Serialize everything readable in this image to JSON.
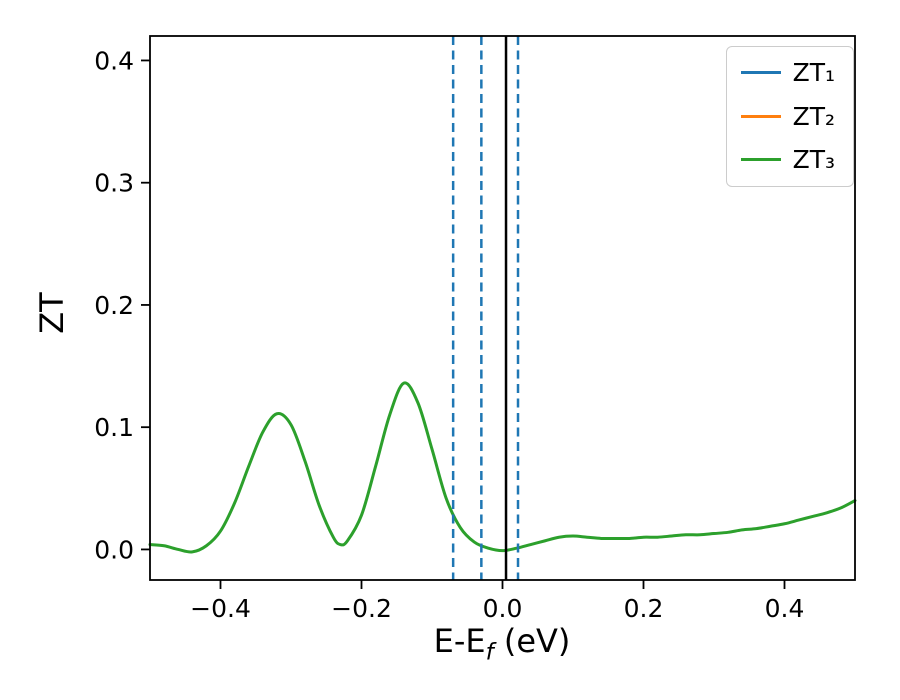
{
  "colors": {
    "background": "#ffffff",
    "axis": "#000000",
    "legend_border": "#cccccc"
  },
  "chart_data": {
    "type": "line",
    "title": "",
    "xlabel": {
      "pre": "E-E",
      "sub": "f",
      "post": " (eV)"
    },
    "ylabel": "ZT",
    "xlim": [
      -0.5,
      0.5
    ],
    "ylim": [
      -0.025,
      0.42
    ],
    "xticks": [
      -0.4,
      -0.2,
      0.0,
      0.2,
      0.4
    ],
    "xtick_labels": [
      "−0.4",
      "−0.2",
      "0.0",
      "0.2",
      "0.4"
    ],
    "yticks": [
      0.0,
      0.1,
      0.2,
      0.3,
      0.4
    ],
    "ytick_labels": [
      "0.0",
      "0.1",
      "0.2",
      "0.3",
      "0.4"
    ],
    "grid": false,
    "legend": {
      "position": "upper right",
      "entries": [
        {
          "label": "ZT₁",
          "color": "#1f77b4"
        },
        {
          "label": "ZT₂",
          "color": "#ff7f0e"
        },
        {
          "label": "ZT₃",
          "color": "#2ca02c"
        }
      ]
    },
    "vlines": [
      {
        "x": -0.07,
        "color": "#1f77b4",
        "style": "dashed"
      },
      {
        "x": -0.03,
        "color": "#1f77b4",
        "style": "dashed"
      },
      {
        "x": 0.022,
        "color": "#1f77b4",
        "style": "dashed"
      },
      {
        "x": 0.005,
        "color": "#000000",
        "style": "solid"
      }
    ],
    "series": [
      {
        "name": "ZT₃",
        "color": "#2ca02c",
        "x": [
          -0.5,
          -0.48,
          -0.46,
          -0.44,
          -0.42,
          -0.4,
          -0.38,
          -0.36,
          -0.34,
          -0.32,
          -0.3,
          -0.28,
          -0.26,
          -0.24,
          -0.23,
          -0.22,
          -0.2,
          -0.18,
          -0.16,
          -0.14,
          -0.12,
          -0.1,
          -0.08,
          -0.06,
          -0.04,
          -0.02,
          0.0,
          0.02,
          0.04,
          0.06,
          0.08,
          0.1,
          0.12,
          0.14,
          0.16,
          0.18,
          0.2,
          0.22,
          0.24,
          0.26,
          0.28,
          0.3,
          0.32,
          0.34,
          0.36,
          0.38,
          0.4,
          0.42,
          0.44,
          0.46,
          0.48,
          0.5
        ],
        "y": [
          0.004,
          0.003,
          0.0,
          -0.002,
          0.003,
          0.015,
          0.038,
          0.068,
          0.096,
          0.111,
          0.102,
          0.072,
          0.036,
          0.01,
          0.004,
          0.007,
          0.028,
          0.068,
          0.11,
          0.136,
          0.12,
          0.082,
          0.042,
          0.018,
          0.006,
          0.001,
          -0.001,
          0.001,
          0.004,
          0.007,
          0.01,
          0.011,
          0.01,
          0.009,
          0.009,
          0.009,
          0.01,
          0.01,
          0.011,
          0.012,
          0.012,
          0.013,
          0.014,
          0.016,
          0.017,
          0.019,
          0.021,
          0.024,
          0.027,
          0.03,
          0.034,
          0.04
        ]
      }
    ]
  }
}
